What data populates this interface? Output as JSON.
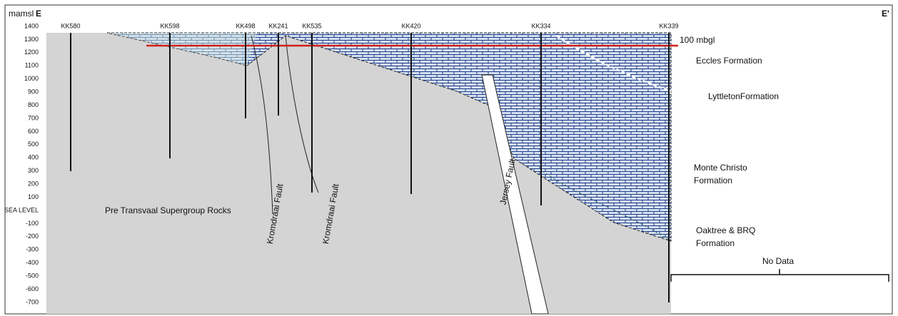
{
  "axis": {
    "unit": "mamsl",
    "section_start": "E",
    "section_end": "E'",
    "labels": [
      "1400",
      "1300",
      "1200",
      "1100",
      "1000",
      "900",
      "800",
      "700",
      "600",
      "500",
      "400",
      "300",
      "200",
      "100",
      "SEA LEVEL",
      "-100",
      "-200",
      "-300",
      "-400",
      "-500",
      "-600",
      "-700"
    ]
  },
  "boreholes": [
    "KK580",
    "KK598",
    "KK498",
    "KK241",
    "KK535",
    "KK420",
    "KK334",
    "KK339"
  ],
  "annotations": {
    "mbgl": "100 mbgl",
    "eccles": "Eccles Formation",
    "lyttleton": "LyttletonFormation",
    "monte_christo": [
      "Monte Christo",
      "Formation"
    ],
    "oaktree": [
      "Oaktree & BRQ",
      "Formation"
    ],
    "no_data": "No Data",
    "basement": "Pre Transvaal Supergroup Rocks",
    "faults": [
      "Kromdraai Fault",
      "Kromdraai Fault",
      "Jersey Fault"
    ]
  }
}
